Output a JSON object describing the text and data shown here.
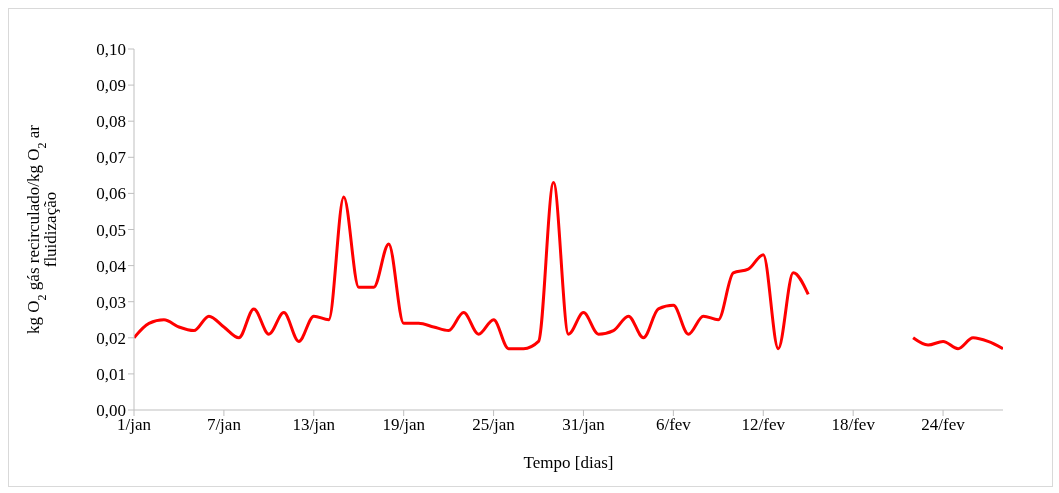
{
  "chart_data": {
    "type": "line",
    "xlabel": "Tempo [dias]",
    "ylabel": "kg O$_{2}$ gás recirculado/kg O$_{2}$ ar fluidização",
    "categories": [
      "1/jan",
      null,
      null,
      null,
      null,
      null,
      "7/jan",
      null,
      null,
      null,
      null,
      null,
      "13/jan",
      null,
      null,
      null,
      null,
      null,
      "19/jan",
      null,
      null,
      null,
      null,
      null,
      "25/jan",
      null,
      null,
      null,
      null,
      null,
      "31/jan",
      null,
      null,
      null,
      null,
      null,
      "6/fev",
      null,
      null,
      null,
      null,
      null,
      "12/fev",
      null,
      null,
      null,
      null,
      null,
      "18/fev",
      null,
      null,
      null,
      null,
      null,
      "24/fev",
      null,
      null,
      null,
      null
    ],
    "series": [
      {
        "color": "#ff0000",
        "values": [
          0.02,
          0.024,
          0.025,
          0.023,
          0.022,
          0.026,
          0.023,
          0.02,
          0.028,
          0.021,
          0.027,
          0.019,
          0.026,
          0.025,
          0.059,
          0.034,
          0.034,
          0.046,
          0.024,
          0.024,
          0.023,
          0.022,
          0.027,
          0.021,
          0.025,
          0.017,
          0.017,
          0.019,
          0.063,
          0.021,
          0.027,
          0.021,
          0.022,
          0.026,
          0.02,
          0.028,
          0.029,
          0.021,
          0.026,
          0.025,
          0.038,
          0.039,
          0.043,
          0.017,
          0.038,
          0.032,
          null,
          null,
          null,
          null,
          null,
          null,
          0.02,
          0.018,
          0.019,
          0.017,
          0.02,
          0.019,
          0.017
        ]
      }
    ],
    "ylim": [
      0,
      0.1
    ],
    "yticks": [
      {
        "value": 0,
        "label": "0,00"
      },
      {
        "value": 0.01,
        "label": "0,01"
      },
      {
        "value": 0.02,
        "label": "0,02"
      },
      {
        "value": 0.03,
        "label": "0,03"
      },
      {
        "value": 0.04,
        "label": "0,04"
      },
      {
        "value": 0.05,
        "label": "0,05"
      },
      {
        "value": 0.06,
        "label": "0,06"
      },
      {
        "value": 0.07,
        "label": "0,07"
      },
      {
        "value": 0.08,
        "label": "0,08"
      },
      {
        "value": 0.09,
        "label": "0,09"
      },
      {
        "value": 0.1,
        "label": "0,10"
      }
    ],
    "grid": false,
    "legend": false,
    "marker": "none",
    "line_style": "solid"
  }
}
